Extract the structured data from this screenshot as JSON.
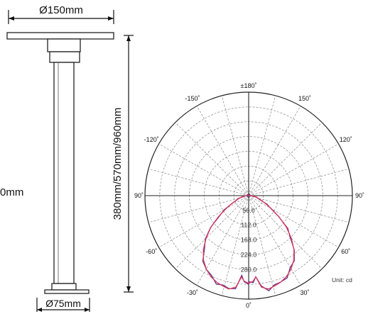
{
  "dimensions": {
    "top_diameter": "Ø150mm",
    "base_diameter": "Ø75mm",
    "height_options": "380mm/570mm/960mm",
    "cut_label": "0mm"
  },
  "polar": {
    "angles": [
      {
        "deg": 0,
        "label": "0˚"
      },
      {
        "deg": 30,
        "label": "30˚"
      },
      {
        "deg": -30,
        "label": "-30˚"
      },
      {
        "deg": 60,
        "label": "60˚"
      },
      {
        "deg": -60,
        "label": "-60˚"
      },
      {
        "deg": 90,
        "label": "90˚"
      },
      {
        "deg": -90,
        "label": "90˚"
      },
      {
        "deg": 120,
        "label": "120˚"
      },
      {
        "deg": -120,
        "label": "-120˚"
      },
      {
        "deg": 150,
        "label": "150˚"
      },
      {
        "deg": -150,
        "label": "-150˚"
      },
      {
        "deg": 180,
        "label": "±180˚"
      }
    ],
    "cd_levels": [
      "56.0",
      "112.0",
      "168.0",
      "224.0",
      "280.0"
    ],
    "unit": "Unit: cd",
    "colors": {
      "curve_a": "#d63a5c",
      "curve_b": "#5a2a8a",
      "grid": "#777777",
      "axis": "#222222"
    }
  }
}
